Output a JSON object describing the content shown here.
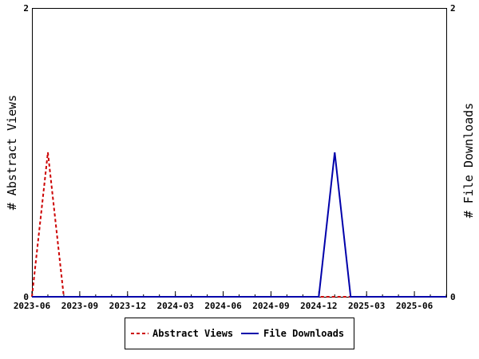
{
  "chart_data": {
    "type": "line",
    "x_tick_labels": [
      "2023-06",
      "2023-09",
      "2023-12",
      "2024-03",
      "2024-06",
      "2024-09",
      "2024-12",
      "2025-03",
      "2025-06"
    ],
    "x_range": [
      "2023-06",
      "2025-08"
    ],
    "y_left": {
      "label": "# Abstract Views",
      "range": [
        0,
        2
      ],
      "tick_labels": [
        "0",
        "2"
      ]
    },
    "y_right": {
      "label": "# File Downloads",
      "range": [
        0,
        2
      ],
      "tick_labels": [
        "0",
        "2"
      ]
    },
    "series": [
      {
        "name": "Abstract Views",
        "axis": "left",
        "color": "#cc0000",
        "style": "dashed",
        "points": [
          [
            "2023-06",
            0
          ],
          [
            "2023-07",
            1
          ],
          [
            "2023-08",
            0
          ],
          [
            "2025-08",
            0
          ]
        ]
      },
      {
        "name": "File Downloads",
        "axis": "right",
        "color": "#0000aa",
        "style": "solid",
        "points": [
          [
            "2023-06",
            0
          ],
          [
            "2024-12",
            0
          ],
          [
            "2025-01",
            1
          ],
          [
            "2025-02",
            0
          ],
          [
            "2025-08",
            0
          ]
        ]
      }
    ],
    "legend": {
      "position": "bottom",
      "entries": [
        "Abstract Views",
        "File Downloads"
      ]
    },
    "grid": false
  }
}
